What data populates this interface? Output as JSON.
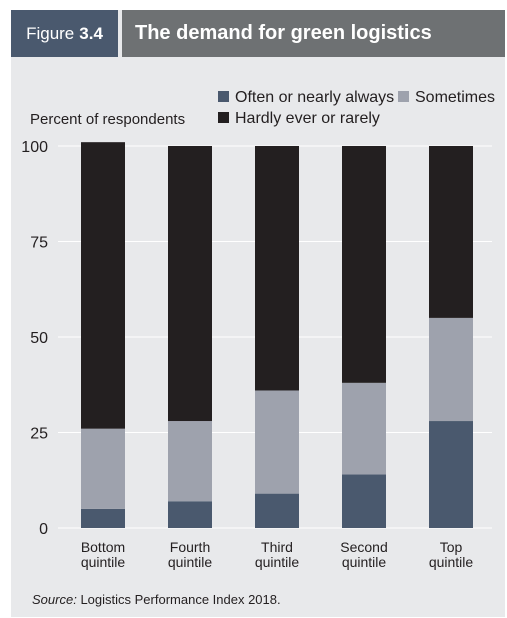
{
  "header": {
    "figure_word": "Figure",
    "figure_number": "3.4",
    "title": "The demand for green logistics"
  },
  "source": {
    "label": "Source:",
    "text": "Logistics Performance Index 2018."
  },
  "colors": {
    "panel_bg": "#e8e9eb",
    "tag_bg": "#4a596e",
    "title_bg": "#6e7173",
    "often": "#4a596e",
    "sometimes": "#9ea2ad",
    "hardly": "#231f20",
    "grid": "#ffffff"
  },
  "chart_data": {
    "type": "bar",
    "stacked": true,
    "ylabel": "Percent of respondents",
    "xlabel": "",
    "ylim": [
      0,
      100
    ],
    "yticks": [
      0,
      25,
      50,
      75,
      100
    ],
    "grid": true,
    "legend_position": "top-right",
    "categories": [
      [
        "Bottom",
        "quintile"
      ],
      [
        "Fourth",
        "quintile"
      ],
      [
        "Third",
        "quintile"
      ],
      [
        "Second",
        "quintile"
      ],
      [
        "Top",
        "quintile"
      ]
    ],
    "series": [
      {
        "name": "Often or nearly always",
        "color": "#4a596e",
        "values": [
          5,
          7,
          9,
          14,
          28
        ]
      },
      {
        "name": "Sometimes",
        "color": "#9ea2ad",
        "values": [
          21,
          21,
          27,
          24,
          27
        ]
      },
      {
        "name": "Hardly ever or rarely",
        "color": "#231f20",
        "values": [
          75,
          72,
          64,
          62,
          45
        ]
      }
    ]
  }
}
